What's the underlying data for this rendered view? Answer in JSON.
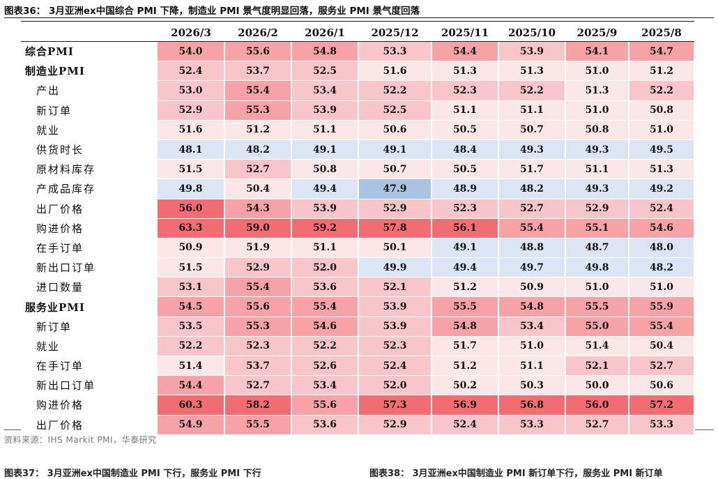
{
  "figure": {
    "title": "图表36：  3月亚洲ex中国综合 PMI 下降，制造业 PMI 景气度明显回落，服务业 PMI 景气度回落",
    "source": "资料来源：IHS Markit PMI，华泰研究",
    "next_caption_left": "图表37：  3月亚洲ex中国制造业 PMI 下行，服务业 PMI 下行",
    "next_caption_right": "图表38：  3月亚洲ex中国制造业 PMI 新订单下行，服务业 PMI 新订单"
  },
  "table": {
    "columns": [
      "2026/3",
      "2026/2",
      "2026/1",
      "2025/12",
      "2025/11",
      "2025/10",
      "2025/9",
      "2025/8"
    ],
    "rows": [
      {
        "label": "综合PMI",
        "main": true,
        "values": [
          "54.0",
          "55.6",
          "54.8",
          "53.3",
          "54.4",
          "53.9",
          "54.1",
          "54.7"
        ]
      },
      {
        "label": "制造业PMI",
        "main": true,
        "values": [
          "52.4",
          "53.7",
          "52.5",
          "51.6",
          "51.3",
          "51.3",
          "51.0",
          "51.2"
        ]
      },
      {
        "label": "产出",
        "main": false,
        "values": [
          "53.0",
          "55.4",
          "53.4",
          "52.2",
          "52.3",
          "52.2",
          "51.3",
          "52.2"
        ]
      },
      {
        "label": "新订单",
        "main": false,
        "values": [
          "52.9",
          "55.3",
          "53.9",
          "52.5",
          "51.1",
          "51.1",
          "51.0",
          "50.8"
        ]
      },
      {
        "label": "就业",
        "main": false,
        "values": [
          "51.6",
          "51.2",
          "51.1",
          "50.6",
          "50.5",
          "50.7",
          "50.8",
          "51.0"
        ]
      },
      {
        "label": "供货时长",
        "main": false,
        "values": [
          "48.1",
          "48.2",
          "49.1",
          "49.1",
          "48.4",
          "49.3",
          "49.3",
          "49.5"
        ]
      },
      {
        "label": "原材料库存",
        "main": false,
        "values": [
          "51.5",
          "52.7",
          "50.8",
          "50.7",
          "50.5",
          "51.7",
          "51.1",
          "51.3"
        ]
      },
      {
        "label": "产成品库存",
        "main": false,
        "values": [
          "49.8",
          "50.4",
          "49.4",
          "47.9",
          "48.9",
          "48.2",
          "49.3",
          "49.2"
        ]
      },
      {
        "label": "出厂价格",
        "main": false,
        "values": [
          "56.0",
          "54.3",
          "53.9",
          "52.9",
          "52.3",
          "52.7",
          "52.9",
          "52.4"
        ]
      },
      {
        "label": "购进价格",
        "main": false,
        "values": [
          "63.3",
          "59.0",
          "59.2",
          "57.8",
          "56.1",
          "55.4",
          "55.1",
          "54.6"
        ]
      },
      {
        "label": "在手订单",
        "main": false,
        "values": [
          "50.9",
          "51.9",
          "51.1",
          "50.1",
          "49.1",
          "48.8",
          "48.7",
          "48.0"
        ]
      },
      {
        "label": "新出口订单",
        "main": false,
        "values": [
          "51.5",
          "52.9",
          "52.0",
          "49.9",
          "49.4",
          "49.7",
          "49.8",
          "48.2"
        ]
      },
      {
        "label": "进口数量",
        "main": false,
        "values": [
          "53.1",
          "55.4",
          "53.6",
          "52.1",
          "51.2",
          "50.9",
          "51.0",
          "51.0"
        ]
      },
      {
        "label": "服务业PMI",
        "main": true,
        "values": [
          "54.5",
          "55.6",
          "55.4",
          "53.9",
          "55.5",
          "54.8",
          "55.5",
          "55.9"
        ]
      },
      {
        "label": "新订单",
        "main": false,
        "values": [
          "53.5",
          "55.3",
          "54.6",
          "53.9",
          "54.8",
          "53.4",
          "55.0",
          "55.4"
        ]
      },
      {
        "label": "就业",
        "main": false,
        "values": [
          "52.2",
          "52.3",
          "52.2",
          "52.3",
          "51.7",
          "51.0",
          "51.4",
          "50.4"
        ]
      },
      {
        "label": "在手订单",
        "main": false,
        "values": [
          "51.4",
          "53.7",
          "52.6",
          "52.4",
          "51.2",
          "51.1",
          "52.1",
          "52.7"
        ]
      },
      {
        "label": "新出口订单",
        "main": false,
        "values": [
          "54.4",
          "52.7",
          "53.4",
          "52.0",
          "50.2",
          "50.3",
          "50.0",
          "50.6"
        ]
      },
      {
        "label": "购进价格",
        "main": false,
        "values": [
          "60.3",
          "58.2",
          "55.6",
          "57.3",
          "56.9",
          "56.8",
          "56.0",
          "57.2"
        ]
      },
      {
        "label": "出厂价格",
        "main": false,
        "values": [
          "54.9",
          "55.5",
          "53.6",
          "52.9",
          "52.4",
          "53.3",
          "52.7",
          "53.3"
        ]
      }
    ]
  },
  "colors": {
    "heat_levels": [
      "#a9c4e3",
      "#dbe5f3",
      "#fbe6e8",
      "#f8c6ca",
      "#f6a2a6",
      "#f26d72"
    ],
    "rule": "#1a1a1a"
  }
}
